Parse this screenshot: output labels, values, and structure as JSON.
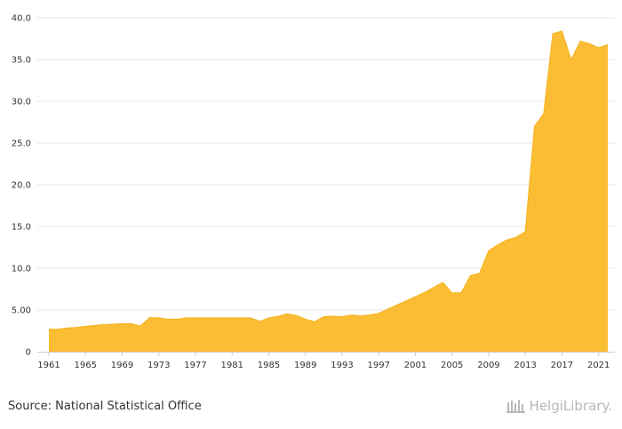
{
  "chart_data": {
    "type": "area",
    "title": "",
    "xlabel": "",
    "ylabel": "",
    "x": [
      1961,
      1962,
      1963,
      1964,
      1965,
      1966,
      1967,
      1968,
      1969,
      1970,
      1971,
      1972,
      1973,
      1974,
      1975,
      1976,
      1977,
      1978,
      1979,
      1980,
      1981,
      1982,
      1983,
      1984,
      1985,
      1986,
      1987,
      1988,
      1989,
      1990,
      1991,
      1992,
      1993,
      1994,
      1995,
      1996,
      1997,
      1998,
      1999,
      2000,
      2001,
      2002,
      2003,
      2004,
      2005,
      2006,
      2007,
      2008,
      2009,
      2010,
      2011,
      2012,
      2013,
      2014,
      2015,
      2016,
      2017,
      2018,
      2019,
      2020,
      2021,
      2022
    ],
    "values": [
      2.7,
      2.7,
      2.85,
      2.9,
      3.05,
      3.15,
      3.25,
      3.3,
      3.35,
      3.35,
      3.1,
      4.1,
      4.05,
      3.9,
      3.9,
      4.05,
      4.05,
      4.05,
      4.05,
      4.05,
      4.05,
      4.05,
      4.05,
      3.65,
      4.05,
      4.25,
      4.55,
      4.35,
      3.9,
      3.6,
      4.2,
      4.25,
      4.2,
      4.4,
      4.3,
      4.4,
      4.6,
      5.1,
      5.6,
      6.1,
      6.6,
      7.1,
      7.7,
      8.3,
      7.05,
      7.05,
      9.1,
      9.4,
      12.1,
      12.8,
      13.4,
      13.7,
      14.4,
      27.0,
      28.5,
      38.1,
      38.4,
      35.0,
      37.2,
      36.9,
      36.4,
      36.8
    ],
    "ylim": [
      0,
      40
    ],
    "y_ticks": [
      "0",
      "5.00",
      "10.0",
      "15.0",
      "20.0",
      "25.0",
      "30.0",
      "35.0",
      "40.0"
    ],
    "y_tick_values": [
      0,
      5,
      10,
      15,
      20,
      25,
      30,
      35,
      40
    ],
    "x_ticks": [
      "1961",
      "1965",
      "1969",
      "1973",
      "1977",
      "1981",
      "1985",
      "1989",
      "1993",
      "1997",
      "2001",
      "2005",
      "2009",
      "2013",
      "2017",
      "2021"
    ],
    "x_tick_values": [
      1961,
      1965,
      1969,
      1973,
      1977,
      1981,
      1985,
      1989,
      1993,
      1997,
      2001,
      2005,
      2009,
      2013,
      2017,
      2021
    ],
    "grid": true,
    "color": "#fbbd33"
  },
  "footer": {
    "source": "Source: National Statistical Office",
    "logo_text": "HelgiLibrary."
  },
  "colors": {
    "gridline": "#e6e6e6",
    "axis": "#cccccc",
    "text": "#333333",
    "logo": "#b8b8b8"
  }
}
